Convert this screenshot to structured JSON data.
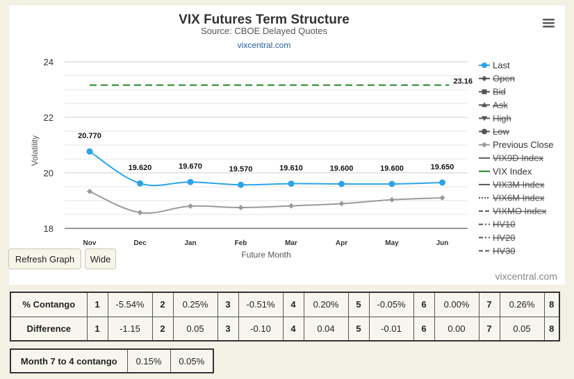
{
  "chart_data": {
    "type": "line",
    "title": "VIX Futures Term Structure",
    "subtitle": "Source: CBOE Delayed Quotes",
    "source_link": "vixcentral.com",
    "categories": [
      "Nov",
      "Dec",
      "Jan",
      "Feb",
      "Mar",
      "Apr",
      "May",
      "Jun"
    ],
    "ylabel": "Volatility",
    "xlabel": "Future Month",
    "ylim": [
      18,
      24
    ],
    "yticks": [
      18,
      20,
      22,
      24
    ],
    "grid": true,
    "legend_position": "right",
    "series": [
      {
        "name": "Last",
        "values": [
          20.77,
          19.62,
          19.67,
          19.57,
          19.61,
          19.6,
          19.6,
          19.65
        ],
        "labels": [
          "20.770",
          "19.620",
          "19.670",
          "19.570",
          "19.610",
          "19.600",
          "19.600",
          "19.650"
        ],
        "color": "#2aa3e8"
      },
      {
        "name": "Previous Close",
        "values": [
          19.33,
          18.57,
          18.8,
          18.75,
          18.81,
          18.89,
          19.03,
          19.1
        ],
        "color": "#9a9a9a"
      },
      {
        "name": "VIX Index",
        "values": [
          23.16,
          23.16,
          23.16,
          23.16,
          23.16,
          23.16,
          23.16,
          23.16
        ],
        "end_label": "23.16",
        "color": "#1f8a1f",
        "dash": true
      }
    ],
    "legend": [
      {
        "label": "Last",
        "symbol": "circle-line",
        "color": "#2aa3e8",
        "visible": true
      },
      {
        "label": "Open",
        "symbol": "diamond-line",
        "color": "#555555",
        "visible": false
      },
      {
        "label": "Bid",
        "symbol": "square-line",
        "color": "#555555",
        "visible": false
      },
      {
        "label": "Ask",
        "symbol": "triangle-line",
        "color": "#555555",
        "visible": false
      },
      {
        "label": "High",
        "symbol": "triangle-down-line",
        "color": "#555555",
        "visible": false
      },
      {
        "label": "Low",
        "symbol": "circle-line",
        "color": "#555555",
        "visible": false
      },
      {
        "label": "Previous Close",
        "symbol": "diamond-line",
        "color": "#9a9a9a",
        "visible": true
      },
      {
        "label": "VIX9D Index",
        "symbol": "line",
        "color": "#555555",
        "visible": false
      },
      {
        "label": "VIX Index",
        "symbol": "line",
        "color": "#1f8a1f",
        "visible": true
      },
      {
        "label": "VIX3M Index",
        "symbol": "line",
        "color": "#555555",
        "visible": false
      },
      {
        "label": "VIX6M Index",
        "symbol": "dotted",
        "color": "#555555",
        "visible": false
      },
      {
        "label": "VIXMO Index",
        "symbol": "dashed",
        "color": "#555555",
        "visible": false
      },
      {
        "label": "HV10",
        "symbol": "dash-dot",
        "color": "#555555",
        "visible": false
      },
      {
        "label": "HV20",
        "symbol": "dash-dot",
        "color": "#555555",
        "visible": false
      },
      {
        "label": "HV30",
        "symbol": "dashed",
        "color": "#555555",
        "visible": false
      }
    ],
    "credit": "vixcentral.com"
  },
  "buttons": {
    "refresh": "Refresh Graph",
    "wide": "Wide"
  },
  "contango_table": {
    "rows": [
      {
        "label": "% Contango",
        "cells": [
          "1",
          "-5.54%",
          "2",
          "0.25%",
          "3",
          "-0.51%",
          "4",
          "0.20%",
          "5",
          "-0.05%",
          "6",
          "0.00%",
          "7",
          "0.26%",
          "8"
        ]
      },
      {
        "label": "Difference",
        "cells": [
          "1",
          "-1.15",
          "2",
          "0.05",
          "3",
          "-0.10",
          "4",
          "0.04",
          "5",
          "-0.01",
          "6",
          "0.00",
          "7",
          "0.05",
          "8"
        ]
      }
    ]
  },
  "month74": {
    "label": "Month 7 to 4 contango",
    "values": [
      "0.15%",
      "0.05%"
    ]
  }
}
